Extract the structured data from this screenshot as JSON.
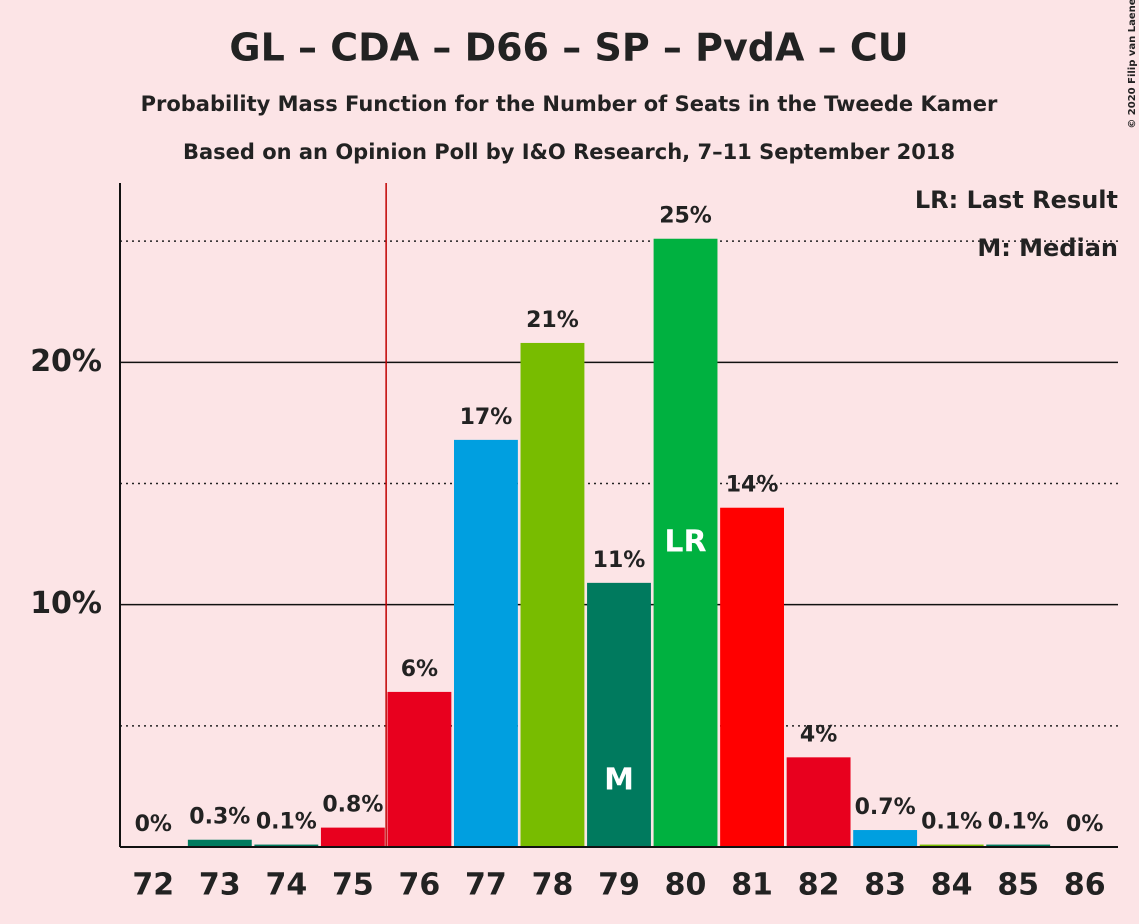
{
  "chart_data": {
    "type": "bar",
    "title": "GL – CDA – D66 – SP – PvdA – CU",
    "subtitle": "Probability Mass Function for the Number of Seats in the Tweede Kamer",
    "subtitle2": "Based on an Opinion Poll by I&O Research, 7–11 September 2018",
    "copyright": "© 2020 Filip van Laenen",
    "legend": [
      "LR: Last Result",
      "M: Median"
    ],
    "legend_position": "top-right",
    "categories": [
      72,
      73,
      74,
      75,
      76,
      77,
      78,
      79,
      80,
      81,
      82,
      83,
      84,
      85,
      86
    ],
    "values": [
      0,
      0.3,
      0.1,
      0.8,
      6.4,
      16.8,
      20.8,
      10.9,
      25.1,
      14,
      3.7,
      0.7,
      0.1,
      0.1,
      0
    ],
    "value_labels": [
      "0%",
      "0.3%",
      "0.1%",
      "0.8%",
      "6%",
      "17%",
      "21%",
      "11%",
      "25%",
      "14%",
      "4%",
      "0.7%",
      "0.1%",
      "0.1%",
      "0%"
    ],
    "colors": [
      "#00b140",
      "#007a5e",
      "#007a5e",
      "#e8001e",
      "#e8001e",
      "#009fe0",
      "#78bc00",
      "#007a5e",
      "#00b140",
      "#ff0000",
      "#e8001e",
      "#009fe0",
      "#78bc00",
      "#007a5e",
      "#00b140"
    ],
    "median": 79,
    "median_label": "M",
    "last_result": 80,
    "last_result_label": "LR",
    "majority": 76,
    "majority_color": "#c00000",
    "ylim": [
      0,
      27.4
    ],
    "yticks": [
      {
        "value": 10,
        "label": "10%"
      },
      {
        "value": 20,
        "label": "20%"
      }
    ],
    "minor_gridlines": [
      5,
      15,
      25
    ],
    "grid": true
  }
}
